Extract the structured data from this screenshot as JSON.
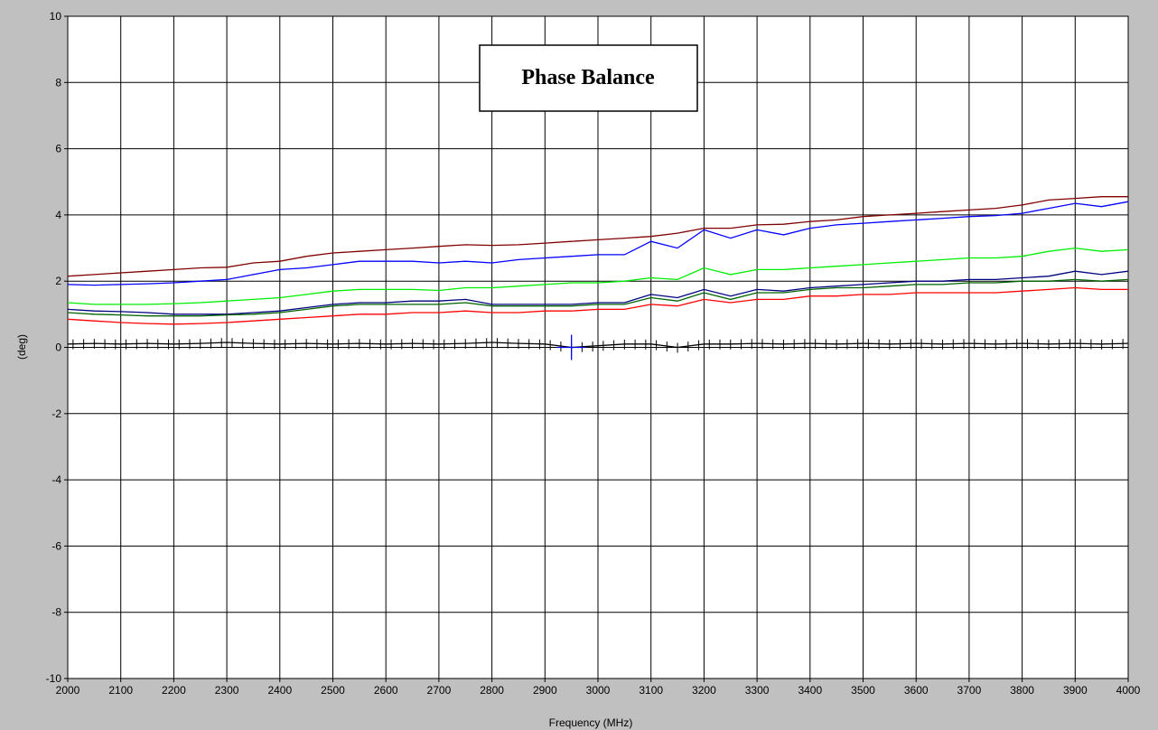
{
  "chart_data": {
    "type": "line",
    "title": "Phase Balance",
    "xlabel": "Frequency (MHz)",
    "ylabel": "(deg)",
    "xlim": [
      2000,
      4000
    ],
    "ylim": [
      -10,
      10
    ],
    "x_ticks": [
      2000,
      2100,
      2200,
      2300,
      2400,
      2500,
      2600,
      2700,
      2800,
      2900,
      3000,
      3100,
      3200,
      3300,
      3400,
      3500,
      3600,
      3700,
      3800,
      3900,
      4000
    ],
    "y_ticks": [
      10,
      8,
      6,
      4,
      2,
      0,
      -2,
      -4,
      -6,
      -8,
      -10
    ],
    "x_tick_labels": [
      "2000",
      "2100",
      "2200",
      "2300",
      "2400",
      "2500",
      "2600",
      "2700",
      "2800",
      "2900",
      "3000",
      "3100",
      "3200",
      "3300",
      "3400",
      "3500",
      "3600",
      "3700",
      "3800",
      "3900",
      "4000"
    ],
    "y_tick_labels": [
      "10",
      "8",
      "6",
      "4",
      "2",
      "0",
      "-2",
      "-4",
      "-6",
      "-8",
      "-10"
    ],
    "grid": true,
    "legend": "none",
    "x": [
      2000,
      2050,
      2100,
      2150,
      2200,
      2250,
      2300,
      2350,
      2400,
      2450,
      2500,
      2550,
      2600,
      2650,
      2700,
      2750,
      2800,
      2850,
      2900,
      2950,
      3000,
      3050,
      3100,
      3150,
      3200,
      3250,
      3300,
      3350,
      3400,
      3450,
      3500,
      3550,
      3600,
      3650,
      3700,
      3750,
      3800,
      3850,
      3900,
      3950,
      4000
    ],
    "series": [
      {
        "color": "#800000",
        "values": [
          2.15,
          2.2,
          2.25,
          2.3,
          2.35,
          2.4,
          2.42,
          2.55,
          2.6,
          2.75,
          2.85,
          2.9,
          2.95,
          3.0,
          3.05,
          3.1,
          3.08,
          3.1,
          3.15,
          3.2,
          3.25,
          3.3,
          3.35,
          3.45,
          3.6,
          3.6,
          3.7,
          3.72,
          3.8,
          3.85,
          3.95,
          4.0,
          4.05,
          4.1,
          4.15,
          4.2,
          4.3,
          4.45,
          4.5,
          4.55,
          4.55
        ]
      },
      {
        "color": "#0000ff",
        "values": [
          1.9,
          1.88,
          1.9,
          1.92,
          1.95,
          2.0,
          2.05,
          2.2,
          2.35,
          2.4,
          2.5,
          2.6,
          2.6,
          2.6,
          2.55,
          2.6,
          2.55,
          2.65,
          2.7,
          2.75,
          2.8,
          2.8,
          3.2,
          3.0,
          3.55,
          3.3,
          3.55,
          3.4,
          3.6,
          3.7,
          3.75,
          3.8,
          3.85,
          3.9,
          3.95,
          3.98,
          4.05,
          4.2,
          4.35,
          4.25,
          4.4
        ]
      },
      {
        "color": "#00ee00",
        "values": [
          1.35,
          1.3,
          1.3,
          1.3,
          1.32,
          1.35,
          1.4,
          1.45,
          1.5,
          1.6,
          1.7,
          1.75,
          1.75,
          1.75,
          1.72,
          1.8,
          1.8,
          1.85,
          1.9,
          1.95,
          1.95,
          2.0,
          2.1,
          2.05,
          2.4,
          2.2,
          2.35,
          2.35,
          2.4,
          2.45,
          2.5,
          2.55,
          2.6,
          2.65,
          2.7,
          2.7,
          2.75,
          2.9,
          3.0,
          2.9,
          2.95
        ]
      },
      {
        "color": "#000080",
        "values": [
          1.15,
          1.1,
          1.08,
          1.05,
          1.0,
          1.0,
          1.0,
          1.05,
          1.1,
          1.2,
          1.3,
          1.35,
          1.35,
          1.4,
          1.4,
          1.45,
          1.3,
          1.3,
          1.3,
          1.3,
          1.35,
          1.35,
          1.6,
          1.5,
          1.75,
          1.55,
          1.75,
          1.7,
          1.8,
          1.85,
          1.9,
          1.95,
          2.0,
          2.0,
          2.05,
          2.05,
          2.1,
          2.15,
          2.3,
          2.2,
          2.3
        ]
      },
      {
        "color": "#006400",
        "values": [
          1.05,
          1.0,
          0.98,
          0.95,
          0.95,
          0.95,
          0.98,
          1.0,
          1.05,
          1.15,
          1.25,
          1.3,
          1.3,
          1.3,
          1.3,
          1.35,
          1.25,
          1.25,
          1.25,
          1.25,
          1.3,
          1.3,
          1.5,
          1.4,
          1.65,
          1.45,
          1.65,
          1.65,
          1.75,
          1.8,
          1.8,
          1.85,
          1.9,
          1.9,
          1.95,
          1.95,
          2.0,
          2.0,
          2.05,
          2.0,
          2.05
        ]
      },
      {
        "color": "#ff0000",
        "values": [
          0.85,
          0.8,
          0.75,
          0.72,
          0.7,
          0.72,
          0.75,
          0.8,
          0.85,
          0.9,
          0.95,
          1.0,
          1.0,
          1.05,
          1.05,
          1.1,
          1.05,
          1.05,
          1.1,
          1.1,
          1.15,
          1.15,
          1.3,
          1.25,
          1.45,
          1.35,
          1.45,
          1.45,
          1.55,
          1.55,
          1.6,
          1.6,
          1.65,
          1.65,
          1.65,
          1.65,
          1.7,
          1.75,
          1.8,
          1.75,
          1.75
        ]
      },
      {
        "color": "#000000",
        "values": [
          0.1,
          0.12,
          0.1,
          0.12,
          0.1,
          0.12,
          0.15,
          0.12,
          0.1,
          0.12,
          0.1,
          0.12,
          0.1,
          0.12,
          0.1,
          0.12,
          0.15,
          0.12,
          0.1,
          0.0,
          0.05,
          0.1,
          0.1,
          0.0,
          0.1,
          0.1,
          0.12,
          0.1,
          0.12,
          0.1,
          0.12,
          0.1,
          0.12,
          0.1,
          0.12,
          0.1,
          0.12,
          0.1,
          0.12,
          0.1,
          0.12
        ]
      }
    ],
    "cursor": {
      "x": 2950,
      "y": 0
    }
  }
}
